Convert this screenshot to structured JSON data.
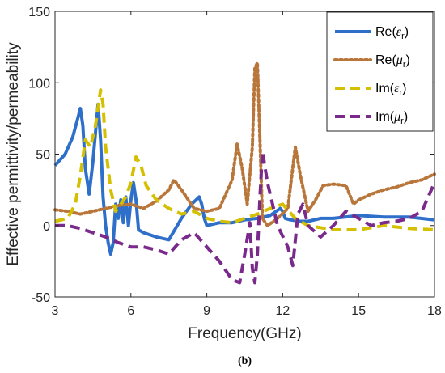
{
  "chart_data": {
    "type": "line",
    "xlabel": "Frequency(GHz)",
    "ylabel": "Effective permittivity/permeability",
    "xlim": [
      3,
      18
    ],
    "ylim": [
      -50,
      150
    ],
    "xticks": [
      3,
      6,
      9,
      12,
      15,
      18
    ],
    "yticks": [
      -50,
      0,
      50,
      100,
      150
    ],
    "subfigure_label": "(b)",
    "legend_position": "top-right",
    "grid": false,
    "series": [
      {
        "name": "Re(εr)",
        "name_base": "Re(",
        "name_symbol": "ε",
        "name_sub": "r",
        "name_end": ")",
        "color": "#2e6fc9",
        "style": "solid",
        "x": [
          3.0,
          3.4,
          3.7,
          3.9,
          4.0,
          4.1,
          4.2,
          4.35,
          4.5,
          4.6,
          4.7,
          4.8,
          4.9,
          5.0,
          5.1,
          5.2,
          5.3,
          5.4,
          5.5,
          5.6,
          5.7,
          5.8,
          5.9,
          6.0,
          6.1,
          6.2,
          6.3,
          6.5,
          7.0,
          7.5,
          8.0,
          8.4,
          8.7,
          8.8,
          8.9,
          9.0,
          9.5,
          10.0,
          10.5,
          11.0,
          11.5,
          11.9,
          12.0,
          12.1,
          12.3,
          12.7,
          13.0,
          13.5,
          14.0,
          15.0,
          16.0,
          17.0,
          18.0
        ],
        "y": [
          42,
          50,
          62,
          75,
          82,
          70,
          40,
          22,
          45,
          65,
          85,
          60,
          20,
          0,
          -12,
          -20,
          -12,
          15,
          5,
          18,
          2,
          20,
          0,
          18,
          30,
          18,
          -3,
          -5,
          -8,
          -10,
          5,
          15,
          20,
          15,
          5,
          0,
          2,
          2,
          4,
          5,
          7,
          12,
          10,
          5,
          4,
          3,
          3,
          5,
          5,
          7,
          6,
          6,
          4
        ]
      },
      {
        "name": "Re(μr)",
        "name_base": "Re(",
        "name_symbol": "μ",
        "name_sub": "r",
        "name_end": ")",
        "color": "#b8763a",
        "style": "dotted",
        "x": [
          3.0,
          3.5,
          4.0,
          4.5,
          5.0,
          5.5,
          6.0,
          6.5,
          7.0,
          7.5,
          7.7,
          8.0,
          8.5,
          9.0,
          9.5,
          10.0,
          10.2,
          10.4,
          10.6,
          10.8,
          10.9,
          11.0,
          11.1,
          11.2,
          11.4,
          11.8,
          12.2,
          12.5,
          12.7,
          13.0,
          13.3,
          13.6,
          14.0,
          14.5,
          14.8,
          15.0,
          15.5,
          16.0,
          16.5,
          17.0,
          17.5,
          18.0
        ],
        "y": [
          11,
          10,
          8,
          10,
          12,
          14,
          15,
          12,
          17,
          25,
          32,
          25,
          12,
          10,
          12,
          32,
          57,
          40,
          15,
          55,
          110,
          114,
          60,
          5,
          0,
          5,
          12,
          55,
          35,
          10,
          18,
          28,
          29,
          28,
          15,
          18,
          22,
          25,
          27,
          30,
          32,
          36
        ]
      },
      {
        "name": "Im(εr)",
        "name_base": "Im(",
        "name_symbol": "ε",
        "name_sub": "r",
        "name_end": ")",
        "color": "#d4c000",
        "style": "dashed",
        "x": [
          3.0,
          3.5,
          3.8,
          4.0,
          4.2,
          4.4,
          4.6,
          4.8,
          4.9,
          5.0,
          5.2,
          5.4,
          5.6,
          5.8,
          6.0,
          6.2,
          6.4,
          6.6,
          7.0,
          7.5,
          8.0,
          8.5,
          9.0,
          9.5,
          10.0,
          10.5,
          11.0,
          11.5,
          12.0,
          12.5,
          13.0,
          14.0,
          15.0,
          16.0,
          17.0,
          18.0
        ],
        "y": [
          3,
          5,
          15,
          35,
          60,
          55,
          70,
          95,
          85,
          55,
          25,
          10,
          15,
          20,
          30,
          48,
          42,
          28,
          18,
          12,
          8,
          10,
          5,
          3,
          2,
          5,
          8,
          12,
          15,
          5,
          0,
          -3,
          -3,
          0,
          -2,
          -3
        ]
      },
      {
        "name": "Im(μr)",
        "name_base": "Im(",
        "name_symbol": "μ",
        "name_sub": "r",
        "name_end": ")",
        "color": "#7a2a8a",
        "style": "dashed",
        "x": [
          3.0,
          3.5,
          4.0,
          4.5,
          5.0,
          5.5,
          6.0,
          6.5,
          7.0,
          7.5,
          8.0,
          8.5,
          9.0,
          9.5,
          10.0,
          10.3,
          10.5,
          10.7,
          10.8,
          10.9,
          11.0,
          11.1,
          11.2,
          11.4,
          11.8,
          12.2,
          12.4,
          12.6,
          12.8,
          13.0,
          13.5,
          14.0,
          14.5,
          15.0,
          15.5,
          16.0,
          16.5,
          17.0,
          17.5,
          18.0
        ],
        "y": [
          0,
          0,
          -2,
          -5,
          -8,
          -12,
          -15,
          -15,
          -17,
          -20,
          -10,
          -5,
          -15,
          -25,
          -38,
          -40,
          -20,
          2,
          -30,
          -40,
          -20,
          20,
          52,
          30,
          0,
          -15,
          -28,
          8,
          15,
          0,
          -8,
          0,
          10,
          5,
          0,
          2,
          3,
          5,
          10,
          30
        ]
      }
    ]
  }
}
